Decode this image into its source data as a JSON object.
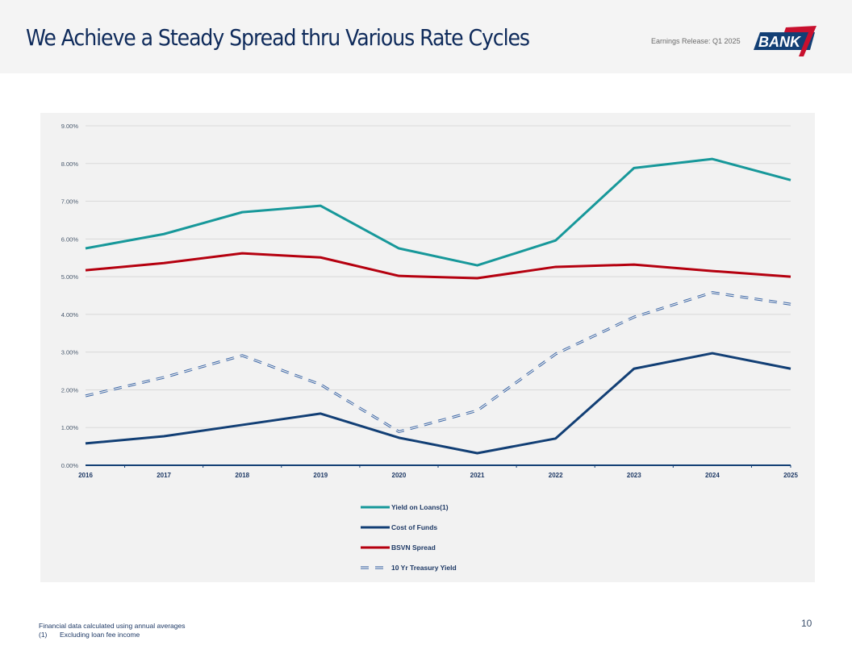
{
  "header": {
    "title": "We Achieve a Steady Spread thru Various Rate Cycles",
    "release": "Earnings Release: Q1 2025",
    "logo_text": "BANK",
    "logo_icon": "bank7-logo"
  },
  "footer": {
    "note": "Financial data calculated using annual averages",
    "footnote_marker": "(1)",
    "footnote_text": "Excluding loan fee income",
    "page_number": "10"
  },
  "chart_data": {
    "type": "line",
    "title": "",
    "xlabel": "",
    "ylabel": "",
    "x": [
      "2016",
      "2017",
      "2018",
      "2019",
      "2020",
      "2021",
      "2022",
      "2023",
      "2024",
      "2025"
    ],
    "ylim": [
      0,
      9
    ],
    "yticks": [
      0,
      1,
      2,
      3,
      4,
      5,
      6,
      7,
      8,
      9
    ],
    "ytick_labels": [
      "0.00%",
      "1.00%",
      "2.00%",
      "3.00%",
      "4.00%",
      "5.00%",
      "6.00%",
      "7.00%",
      "8.00%",
      "9.00%"
    ],
    "grid": true,
    "legend_position": "bottom",
    "series": [
      {
        "name": "Yield on Loans(1)",
        "color": "#17989a",
        "style": "solid",
        "values": [
          5.75,
          6.13,
          6.71,
          6.88,
          5.75,
          5.3,
          5.96,
          7.88,
          8.12,
          7.56
        ]
      },
      {
        "name": "Cost of Funds",
        "color": "#123f75",
        "style": "solid",
        "values": [
          0.58,
          0.77,
          1.07,
          1.37,
          0.73,
          0.32,
          0.71,
          2.56,
          2.97,
          2.56
        ]
      },
      {
        "name": "BSVN Spread",
        "color": "#b5000f",
        "style": "solid",
        "values": [
          5.17,
          5.36,
          5.62,
          5.51,
          5.02,
          4.96,
          5.26,
          5.32,
          5.15,
          5.0
        ]
      },
      {
        "name": "10 Yr Treasury Yield",
        "color": "#3d67a6",
        "style": "dashed",
        "values": [
          1.84,
          2.33,
          2.91,
          2.14,
          0.89,
          1.45,
          2.95,
          3.93,
          4.58,
          4.27
        ]
      }
    ]
  }
}
